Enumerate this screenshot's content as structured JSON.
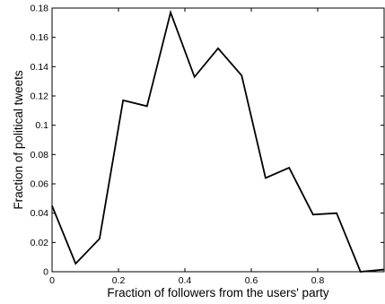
{
  "chart_data": {
    "type": "line",
    "title": "",
    "xlabel": "Fraction of followers from the users' party",
    "ylabel": "Fraction of political tweets",
    "xlim": [
      0,
      1
    ],
    "ylim": [
      0,
      0.18
    ],
    "x_ticks": [
      0,
      0.2,
      0.4,
      0.6,
      0.8
    ],
    "x_tick_labels": [
      "0",
      "0.2",
      "0.4",
      "0.6",
      "0.8"
    ],
    "y_ticks": [
      0,
      0.02,
      0.04,
      0.06,
      0.08,
      0.1,
      0.12,
      0.14,
      0.16,
      0.18
    ],
    "y_tick_labels": [
      "0",
      "0.02",
      "0.04",
      "0.06",
      "0.08",
      "0.1",
      "0.12",
      "0.14",
      "0.16",
      "0.18"
    ],
    "grid": false,
    "line_color": "#000000",
    "series": [
      {
        "x": [
          0,
          0.071,
          0.143,
          0.214,
          0.286,
          0.357,
          0.429,
          0.5,
          0.571,
          0.643,
          0.714,
          0.786,
          0.857,
          0.929,
          1.0
        ],
        "values": [
          0.045,
          0.0055,
          0.0225,
          0.117,
          0.113,
          0.177,
          0.133,
          0.1525,
          0.134,
          0.064,
          0.071,
          0.039,
          0.04,
          0.0,
          0.0015
        ]
      }
    ]
  }
}
